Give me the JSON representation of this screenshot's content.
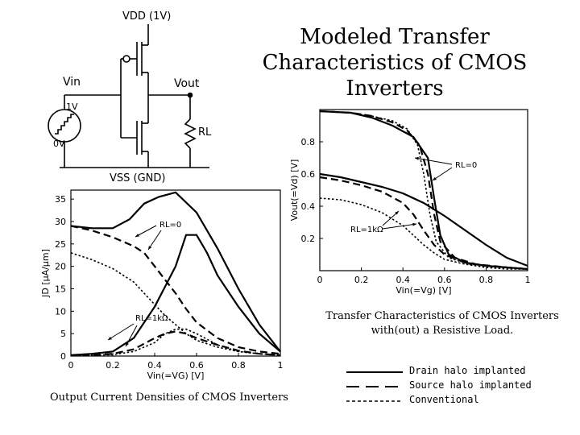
{
  "title_lines": [
    "Modeled Transfer",
    "Characteristics of  CMOS",
    "Inverters"
  ],
  "circuit": {
    "vdd_label": "VDD (1V)",
    "vss_label": "VSS (GND)",
    "vin_label": "Vin",
    "vout_label": "Vout",
    "rl_label": "RL",
    "source_high": "1V",
    "source_low": "0V"
  },
  "caption_right_lines": [
    "Transfer Characteristics of CMOS Inverters",
    "with(out) a Resistive Load."
  ],
  "caption_bottom": "Output Current Densities of CMOS Inverters",
  "legend": [
    {
      "label": "Drain halo implanted",
      "style": "solid"
    },
    {
      "label": "Source halo implanted",
      "style": "dashed"
    },
    {
      "label": "Conventional",
      "style": "dotted"
    }
  ],
  "chart_data": [
    {
      "id": "transfer",
      "type": "line",
      "xlabel": "Vin(=Vg) [V]",
      "ylabel": "Vout(=Vd) [V]",
      "xlim": [
        0,
        1
      ],
      "ylim": [
        0,
        1
      ],
      "xticks": [
        "0",
        "0.2",
        "0.4",
        "0.6",
        "0.8",
        "1"
      ],
      "yticks": [
        "0.2",
        "0.4",
        "0.6",
        "0.8"
      ],
      "annotations": [
        {
          "text": "RL=0",
          "group": "RL=0"
        },
        {
          "text": "RL=1kΩ",
          "group": "RL=1k"
        }
      ],
      "series": [
        {
          "group": "RL=0",
          "style": "solid",
          "x": [
            0,
            0.15,
            0.25,
            0.35,
            0.45,
            0.52,
            0.55,
            0.58,
            0.62,
            0.7,
            0.8,
            0.9,
            1.0
          ],
          "y": [
            0.99,
            0.98,
            0.95,
            0.9,
            0.83,
            0.7,
            0.45,
            0.22,
            0.1,
            0.05,
            0.03,
            0.02,
            0.01
          ]
        },
        {
          "group": "RL=0",
          "style": "dashed",
          "x": [
            0,
            0.15,
            0.25,
            0.35,
            0.42,
            0.48,
            0.52,
            0.55,
            0.58,
            0.65,
            0.75,
            0.9,
            1.0
          ],
          "y": [
            0.99,
            0.98,
            0.96,
            0.92,
            0.87,
            0.78,
            0.6,
            0.35,
            0.18,
            0.08,
            0.04,
            0.02,
            0.01
          ]
        },
        {
          "group": "RL=0",
          "style": "dotted",
          "x": [
            0,
            0.15,
            0.25,
            0.35,
            0.42,
            0.47,
            0.5,
            0.53,
            0.56,
            0.62,
            0.72,
            0.9,
            1.0
          ],
          "y": [
            0.99,
            0.98,
            0.96,
            0.93,
            0.88,
            0.78,
            0.6,
            0.35,
            0.18,
            0.08,
            0.04,
            0.02,
            0.01
          ]
        },
        {
          "group": "RL=1k",
          "style": "solid",
          "x": [
            0,
            0.1,
            0.2,
            0.3,
            0.4,
            0.5,
            0.6,
            0.7,
            0.8,
            0.9,
            1.0
          ],
          "y": [
            0.6,
            0.58,
            0.55,
            0.52,
            0.48,
            0.42,
            0.34,
            0.25,
            0.16,
            0.08,
            0.03
          ]
        },
        {
          "group": "RL=1k",
          "style": "dashed",
          "x": [
            0,
            0.1,
            0.2,
            0.3,
            0.4,
            0.45,
            0.5,
            0.55,
            0.6,
            0.7,
            0.8,
            0.9,
            1.0
          ],
          "y": [
            0.58,
            0.56,
            0.53,
            0.49,
            0.42,
            0.35,
            0.25,
            0.16,
            0.1,
            0.05,
            0.03,
            0.02,
            0.01
          ]
        },
        {
          "group": "RL=1k",
          "style": "dotted",
          "x": [
            0,
            0.1,
            0.2,
            0.3,
            0.4,
            0.45,
            0.5,
            0.55,
            0.6,
            0.7,
            0.8,
            0.9,
            1.0
          ],
          "y": [
            0.45,
            0.44,
            0.41,
            0.36,
            0.28,
            0.22,
            0.16,
            0.11,
            0.07,
            0.04,
            0.02,
            0.01,
            0.01
          ]
        }
      ]
    },
    {
      "id": "current",
      "type": "line",
      "xlabel": "Vin(=VG) [V]",
      "ylabel": "JD [μA/μm]",
      "xlim": [
        0,
        1
      ],
      "ylim": [
        0,
        37
      ],
      "xticks": [
        "0",
        "0.2",
        "0.4",
        "0.6",
        "0.8",
        "1"
      ],
      "yticks": [
        "0",
        "5",
        "10",
        "15",
        "20",
        "25",
        "30",
        "35"
      ],
      "annotations": [
        {
          "text": "RL=0",
          "group": "RL=0"
        },
        {
          "text": "RL=1kΩ",
          "group": "RL=1k"
        }
      ],
      "series": [
        {
          "group": "RL=0",
          "style": "solid",
          "x": [
            0,
            0.1,
            0.2,
            0.28,
            0.35,
            0.42,
            0.5,
            0.6,
            0.7,
            0.8,
            0.9,
            1.0
          ],
          "y": [
            29,
            28.5,
            28.5,
            30.5,
            34,
            35.5,
            36.5,
            32,
            24,
            15,
            7,
            1
          ]
        },
        {
          "group": "RL=0",
          "style": "dashed",
          "x": [
            0,
            0.1,
            0.2,
            0.3,
            0.35,
            0.4,
            0.45,
            0.5,
            0.55,
            0.6,
            0.7,
            0.8,
            0.9,
            1.0
          ],
          "y": [
            29,
            28,
            26.5,
            24.5,
            23,
            20,
            17,
            14,
            10.5,
            7.5,
            4,
            2,
            1,
            0.5
          ]
        },
        {
          "group": "RL=0",
          "style": "dotted",
          "x": [
            0,
            0.1,
            0.2,
            0.3,
            0.35,
            0.4,
            0.45,
            0.5,
            0.55,
            0.6,
            0.7,
            0.8,
            0.9,
            1.0
          ],
          "y": [
            23,
            21.5,
            19.5,
            16.5,
            14,
            11.5,
            9,
            7,
            5,
            3.5,
            2,
            1,
            0.5,
            0.2
          ]
        },
        {
          "group": "RL=1k",
          "style": "solid",
          "x": [
            0,
            0.1,
            0.2,
            0.3,
            0.4,
            0.5,
            0.55,
            0.6,
            0.65,
            0.7,
            0.8,
            0.9,
            1.0
          ],
          "y": [
            0.2,
            0.5,
            1,
            4,
            11,
            20,
            27,
            27,
            23,
            18,
            11,
            5,
            1
          ]
        },
        {
          "group": "RL=1k",
          "style": "dashed",
          "x": [
            0,
            0.1,
            0.2,
            0.3,
            0.4,
            0.45,
            0.5,
            0.55,
            0.6,
            0.7,
            0.8,
            0.9,
            1.0
          ],
          "y": [
            0.1,
            0.2,
            0.5,
            1.5,
            4,
            5,
            5.5,
            5,
            4,
            2.5,
            1.2,
            0.5,
            0.2
          ]
        },
        {
          "group": "RL=1k",
          "style": "dotted",
          "x": [
            0,
            0.2,
            0.3,
            0.4,
            0.45,
            0.5,
            0.55,
            0.6,
            0.7,
            0.8,
            0.9,
            1.0
          ],
          "y": [
            0.1,
            0.3,
            1,
            3,
            5,
            6,
            6,
            5,
            2.5,
            1,
            0.5,
            0.2
          ]
        }
      ]
    }
  ]
}
